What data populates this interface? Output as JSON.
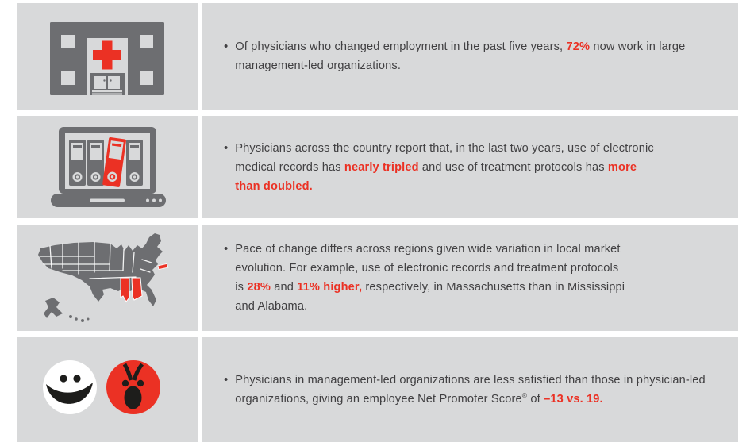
{
  "colors": {
    "panel": "#d8d9da",
    "dark": "#6d6e71",
    "red": "#eb3124",
    "text": "#414042",
    "black": "#1d1d1b",
    "white": "#ffffff"
  },
  "bullet": "•",
  "rows": [
    {
      "icon": "hospital-icon",
      "segments": [
        {
          "t": "Of physicians who changed employment in the past five years, "
        },
        {
          "t": "72%",
          "red": true
        },
        {
          "t": " now work in large"
        },
        {
          "br": true
        },
        {
          "t": "management-led organizations."
        }
      ]
    },
    {
      "icon": "laptop-records-icon",
      "segments": [
        {
          "t": "Physicians across the country report that, in the last two years, use of electronic"
        },
        {
          "br": true
        },
        {
          "t": "medical records has "
        },
        {
          "t": "nearly tripled",
          "red": true
        },
        {
          "t": " and use of treatment protocols has "
        },
        {
          "t": "more",
          "red": true
        },
        {
          "br": true
        },
        {
          "t": "than doubled.",
          "red": true
        }
      ]
    },
    {
      "icon": "us-map-icon",
      "segments": [
        {
          "t": "Pace of change differs across regions given wide variation in local market"
        },
        {
          "br": true
        },
        {
          "t": "evolution. For example, use of electronic records and treatment protocols"
        },
        {
          "br": true
        },
        {
          "t": "is "
        },
        {
          "t": "28%",
          "red": true
        },
        {
          "t": " and "
        },
        {
          "t": "11% higher,",
          "red": true
        },
        {
          "t": " respectively, in Massachusetts than in Mississippi"
        },
        {
          "br": true
        },
        {
          "t": "and Alabama."
        }
      ]
    },
    {
      "icon": "happy-angry-faces-icon",
      "segments": [
        {
          "t": "Physicians in management-led organizations are less satisfied than those in physician-led"
        },
        {
          "br": true
        },
        {
          "t": "organizations, giving an employee Net Promoter Score"
        },
        {
          "t": "®",
          "sup": true
        },
        {
          "t": " of "
        },
        {
          "t": "–13 vs. 19.",
          "red": true
        }
      ]
    }
  ]
}
